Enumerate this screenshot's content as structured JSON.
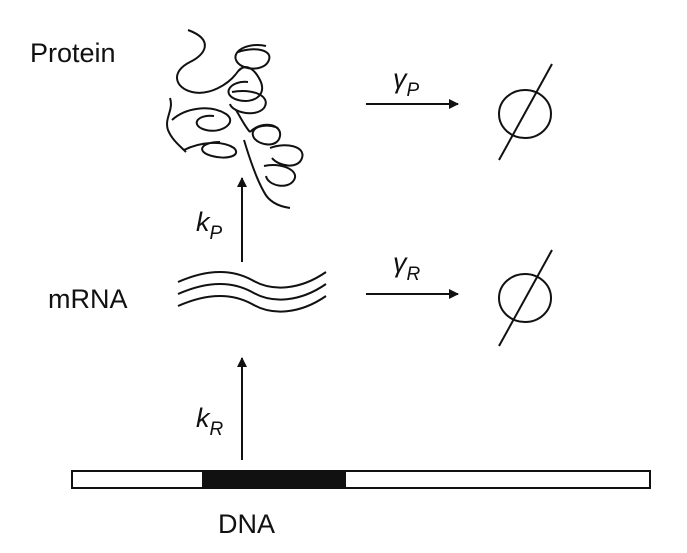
{
  "labels": {
    "protein": "Protein",
    "mrna": "mRNA",
    "dna": "DNA"
  },
  "rates": {
    "protein_decay": {
      "symbol": "γ",
      "subscript": "P"
    },
    "mrna_decay": {
      "symbol": "γ",
      "subscript": "R"
    },
    "translation": {
      "symbol": "k",
      "subscript": "P"
    },
    "transcription": {
      "symbol": "k",
      "subscript": "R"
    }
  },
  "degradation_symbol": "empty-set-icon"
}
